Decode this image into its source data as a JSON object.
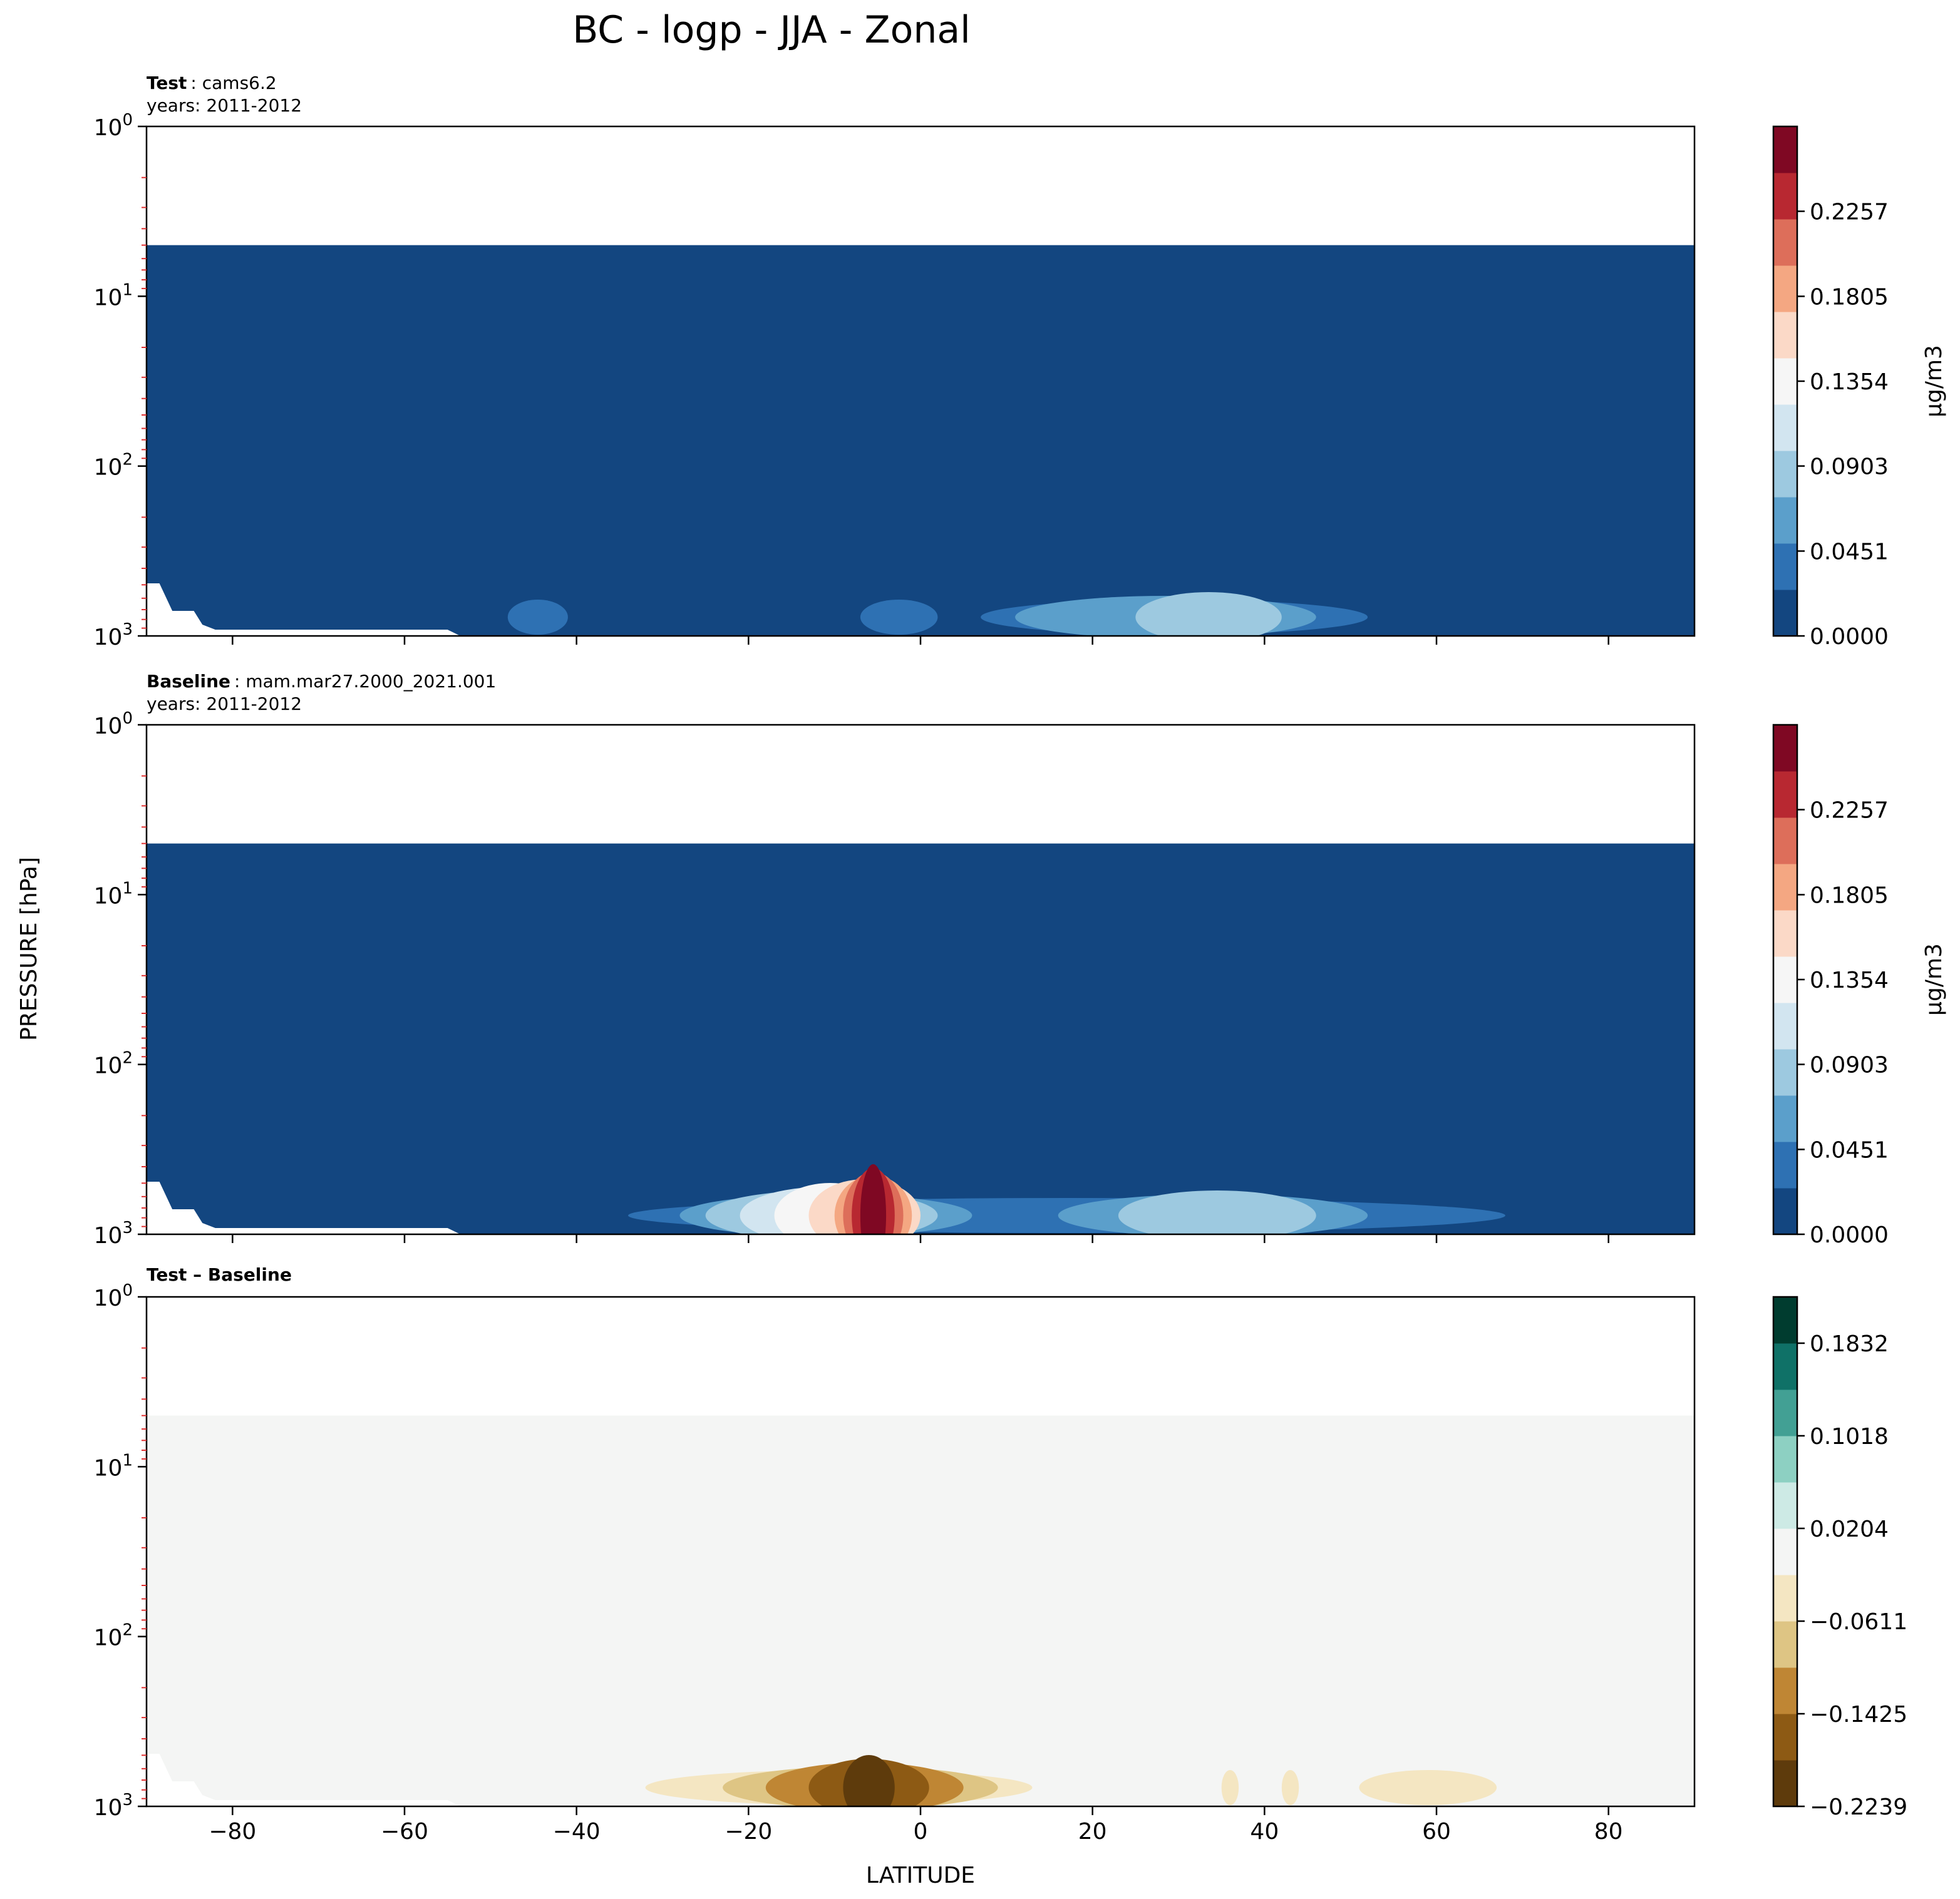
{
  "figure": {
    "title": "BC - logp - JJA - Zonal",
    "ylabel": "PRESSURE [hPa]",
    "xlabel": "LATITUDE"
  },
  "chart_data": [
    {
      "type": "heatmap",
      "label_bold": "Test",
      "label_rest": ": cams6.2",
      "subtitle": "years: 2011-2012",
      "x_range": [
        -90,
        90
      ],
      "y_range_hPa": [
        1,
        1000
      ],
      "y_scale": "log",
      "y_axis": "inverted",
      "x_ticks": [
        -80,
        -60,
        -40,
        -20,
        0,
        20,
        40,
        60,
        80
      ],
      "y_ticks": [
        {
          "base": "10",
          "exp": "0"
        },
        {
          "base": "10",
          "exp": "1"
        },
        {
          "base": "10",
          "exp": "2"
        },
        {
          "base": "10",
          "exp": "3"
        }
      ],
      "data_top_hPa": 5,
      "background_color": "#134680",
      "colorbar": {
        "label": "μg/m3",
        "ticks": [
          "0.2257",
          "0.1805",
          "0.1354",
          "0.0903",
          "0.0451",
          "0.0000"
        ],
        "range": [
          0,
          0.2708
        ],
        "colors": [
          "#134680",
          "#2e71b3",
          "#5b9fcb",
          "#9dc9e0",
          "#d2e5f0",
          "#f6f6f6",
          "#fbd9c7",
          "#f4a782",
          "#dd6e5a",
          "#b82831",
          "#7f0823"
        ]
      },
      "features": [
        {
          "lat_range": [
            -48,
            -41
          ],
          "level": 1
        },
        {
          "lat_range": [
            -7,
            2
          ],
          "level": 1
        },
        {
          "lat_range": [
            7,
            52
          ],
          "level": 1
        },
        {
          "lat_range": [
            11,
            46
          ],
          "level": 2
        },
        {
          "lat_range": [
            25,
            42
          ],
          "level": 3
        }
      ]
    },
    {
      "type": "heatmap",
      "label_bold": "Baseline",
      "label_rest": ": mam.mar27.2000_2021.001",
      "subtitle": "years: 2011-2012",
      "x_range": [
        -90,
        90
      ],
      "y_range_hPa": [
        1,
        1000
      ],
      "y_scale": "log",
      "y_axis": "inverted",
      "x_ticks": [
        -80,
        -60,
        -40,
        -20,
        0,
        20,
        40,
        60,
        80
      ],
      "y_ticks": [
        {
          "base": "10",
          "exp": "0"
        },
        {
          "base": "10",
          "exp": "1"
        },
        {
          "base": "10",
          "exp": "2"
        },
        {
          "base": "10",
          "exp": "3"
        }
      ],
      "data_top_hPa": 5,
      "background_color": "#134680",
      "colorbar": {
        "label": "μg/m3",
        "ticks": [
          "0.2257",
          "0.1805",
          "0.1354",
          "0.0903",
          "0.0451",
          "0.0000"
        ],
        "range": [
          0,
          0.2708
        ],
        "colors": [
          "#134680",
          "#2e71b3",
          "#5b9fcb",
          "#9dc9e0",
          "#d2e5f0",
          "#f6f6f6",
          "#fbd9c7",
          "#f4a782",
          "#dd6e5a",
          "#b82831",
          "#7f0823"
        ]
      },
      "features": [
        {
          "lat_range": [
            -34,
            68
          ],
          "level": 1
        },
        {
          "lat_range": [
            -28,
            6
          ],
          "level": 2
        },
        {
          "lat_range": [
            -25,
            2
          ],
          "level": 3
        },
        {
          "lat_range": [
            -21,
            -1
          ],
          "level": 4
        },
        {
          "lat_range": [
            -17,
            -4
          ],
          "level": 5
        },
        {
          "lat_range": [
            -13,
            0
          ],
          "level": 6
        },
        {
          "lat_range": [
            -10,
            -1
          ],
          "level": 7
        },
        {
          "lat_range": [
            -9,
            -2
          ],
          "level": 8
        },
        {
          "lat_range": [
            -8,
            -3
          ],
          "level": 9
        },
        {
          "lat_range": [
            -7,
            -4
          ],
          "level": 10
        },
        {
          "lat_range": [
            16,
            52
          ],
          "level": 2
        },
        {
          "lat_range": [
            23,
            46
          ],
          "level": 3
        }
      ]
    },
    {
      "type": "heatmap",
      "label_bold": "Test – Baseline",
      "label_rest": "",
      "subtitle": "",
      "x_range": [
        -90,
        90
      ],
      "y_range_hPa": [
        1,
        1000
      ],
      "y_scale": "log",
      "y_axis": "inverted",
      "x_ticks": [
        -80,
        -60,
        -40,
        -20,
        0,
        20,
        40,
        60,
        80
      ],
      "y_ticks": [
        {
          "base": "10",
          "exp": "0"
        },
        {
          "base": "10",
          "exp": "1"
        },
        {
          "base": "10",
          "exp": "2"
        },
        {
          "base": "10",
          "exp": "3"
        }
      ],
      "data_top_hPa": 5,
      "background_color": "#f4f5f4",
      "colorbar": {
        "label": "",
        "ticks": [
          "0.1832",
          "0.1018",
          "0.0204",
          "−0.0611",
          "−0.1425",
          "−0.2239"
        ],
        "range": [
          -0.2239,
          0.2239
        ],
        "colors": [
          "#5e3b0c",
          "#8d5a14",
          "#bf8634",
          "#dec584",
          "#f4e6c2",
          "#f4f5f4",
          "#cdeae5",
          "#8dd0c2",
          "#42a094",
          "#0f7167",
          "#003c2f"
        ]
      },
      "features": [
        {
          "lat_range": [
            -32,
            13
          ],
          "level": 4
        },
        {
          "lat_range": [
            -23,
            9
          ],
          "level": 3
        },
        {
          "lat_range": [
            -18,
            5
          ],
          "level": 2
        },
        {
          "lat_range": [
            -13,
            1
          ],
          "level": 1
        },
        {
          "lat_range": [
            -9,
            -3
          ],
          "level": 0
        },
        {
          "lat_range": [
            42,
            44
          ],
          "level": 4
        },
        {
          "lat_range": [
            51,
            67
          ],
          "level": 4
        },
        {
          "lat_range": [
            35,
            37
          ],
          "level": 4
        }
      ]
    }
  ]
}
